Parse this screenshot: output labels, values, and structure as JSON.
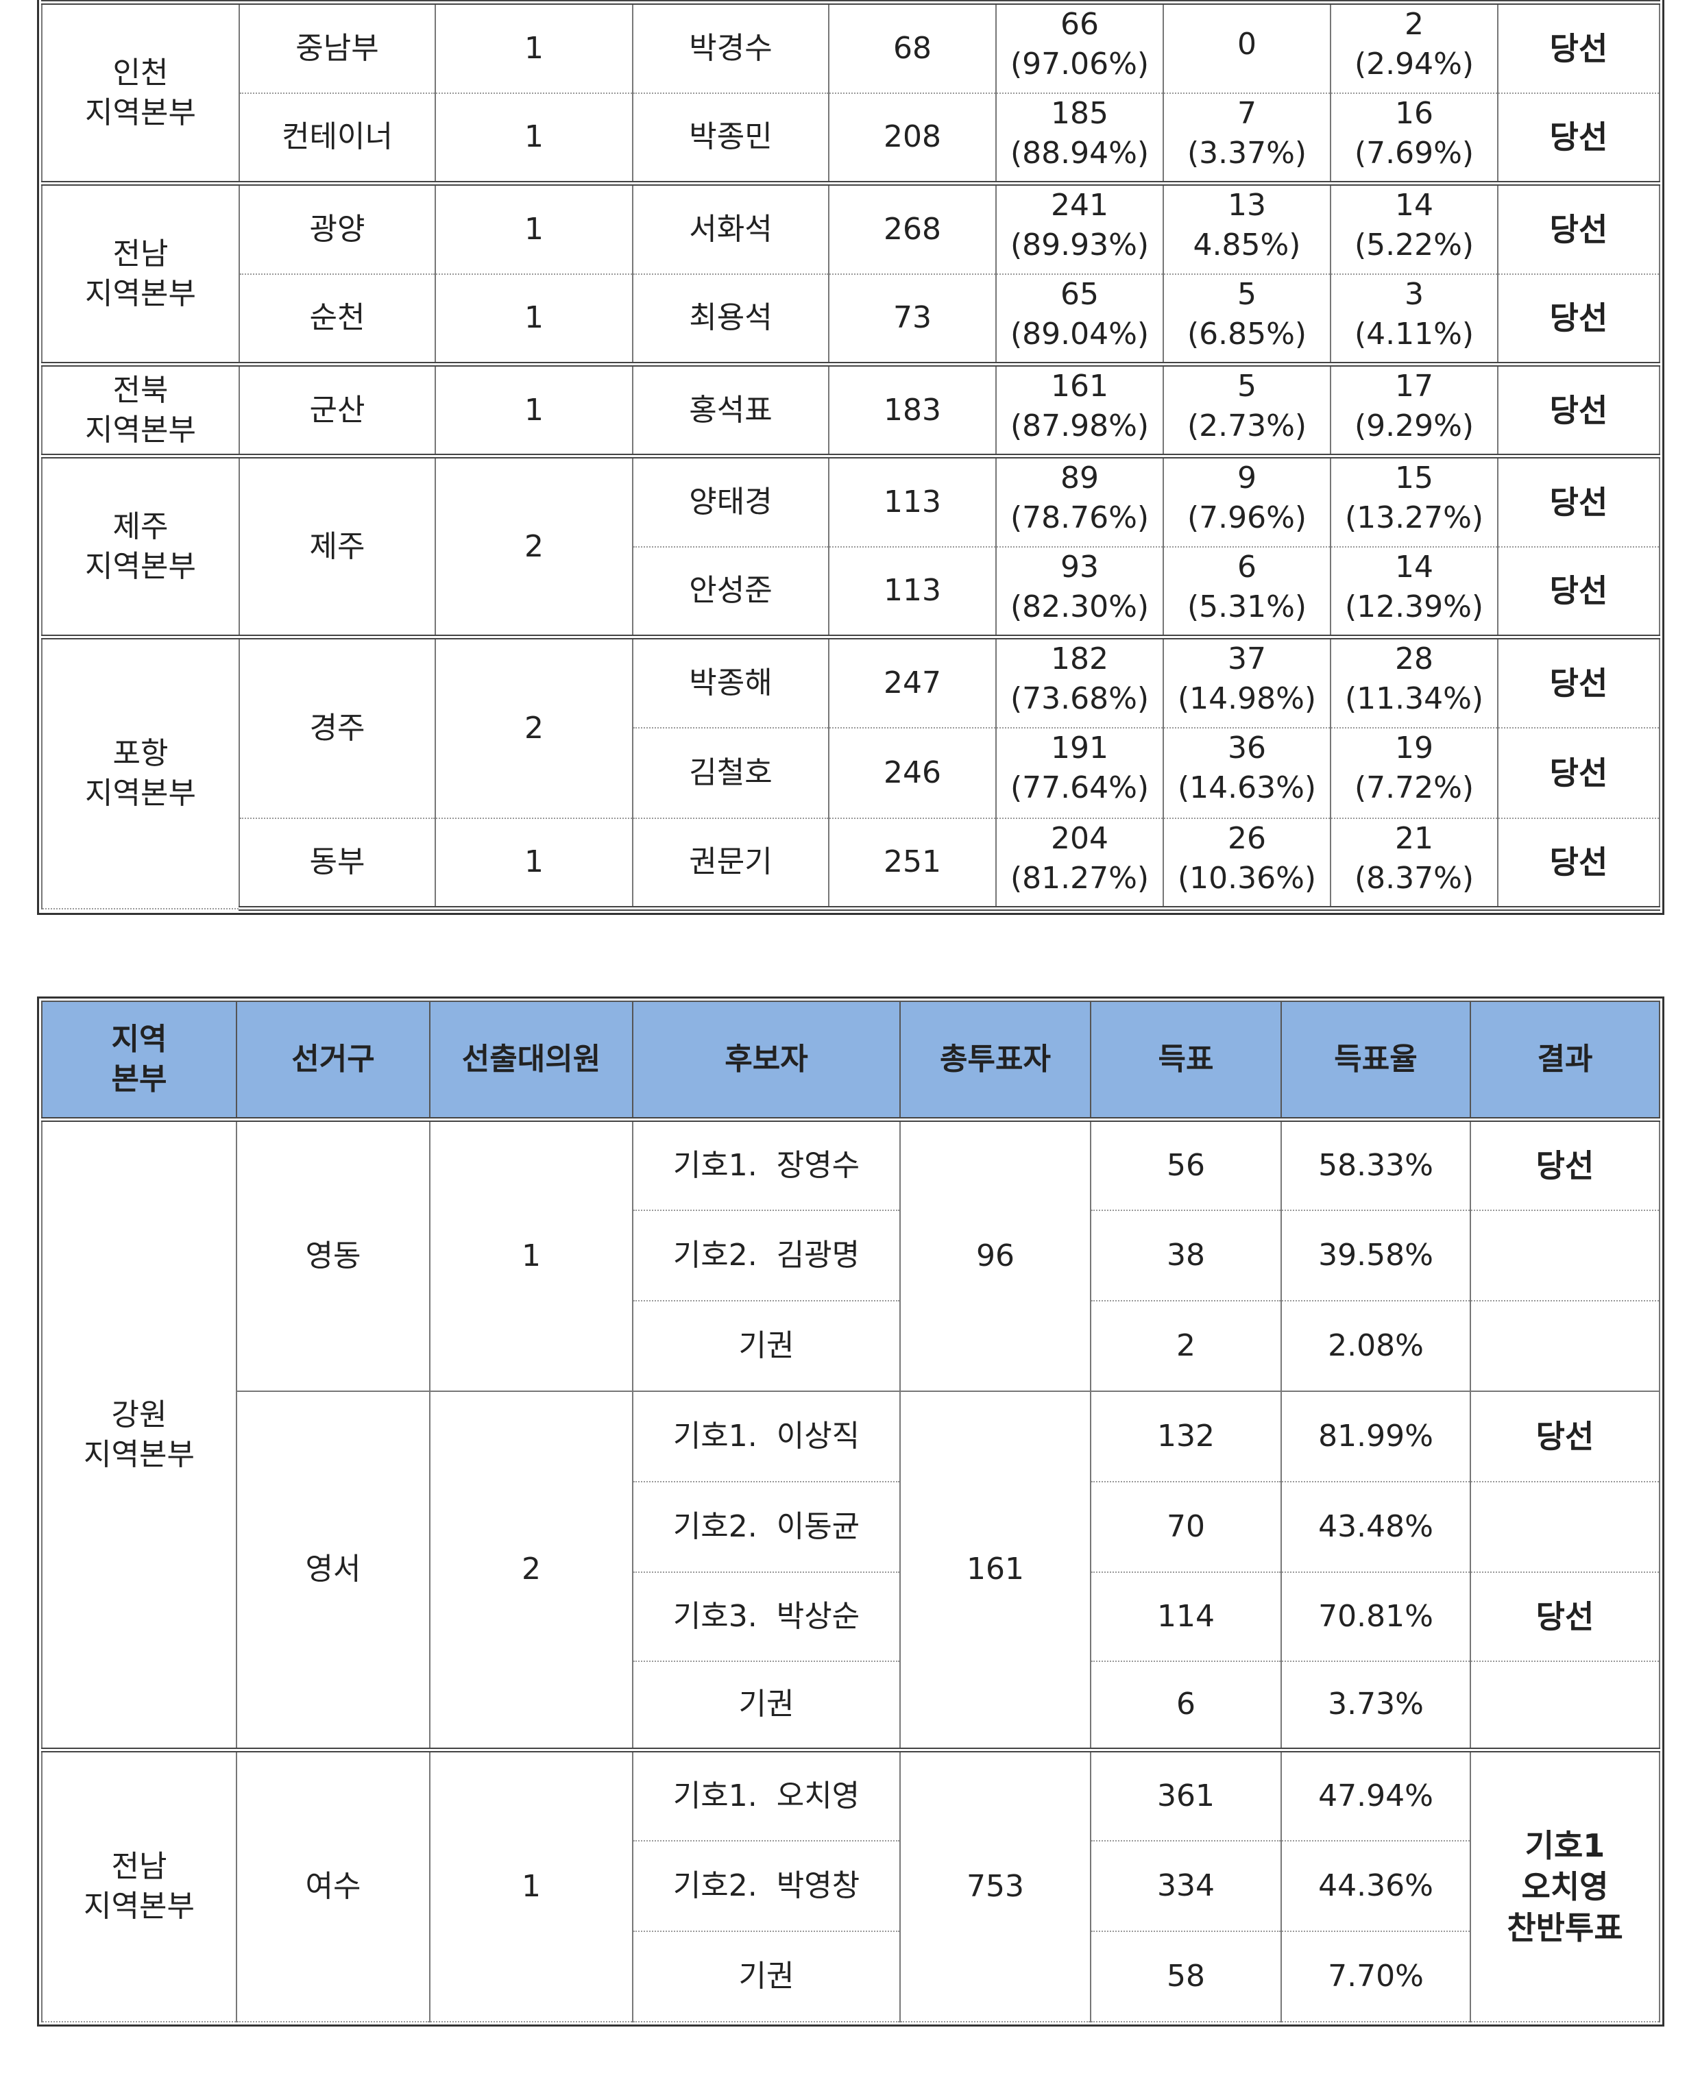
{
  "table1": {
    "rows": [
      {
        "region": "인천\n지역본부",
        "district": "중남부",
        "delegates": "1",
        "candidate": "박경수",
        "total": "68",
        "yes": "66",
        "yes_pct": "(97.06%)",
        "no": "0",
        "no_pct": "",
        "abstain": "2",
        "abstain_pct": "(2.94%)",
        "result": "당선"
      },
      {
        "district": "컨테이너",
        "delegates": "1",
        "candidate": "박종민",
        "total": "208",
        "yes": "185",
        "yes_pct": "(88.94%)",
        "no": "7",
        "no_pct": "(3.37%)",
        "abstain": "16",
        "abstain_pct": "(7.69%)",
        "result": "당선"
      },
      {
        "region": "전남\n지역본부",
        "district": "광양",
        "delegates": "1",
        "candidate": "서화석",
        "total": "268",
        "yes": "241",
        "yes_pct": "(89.93%)",
        "no": "13",
        "no_pct": "4.85%)",
        "abstain": "14",
        "abstain_pct": "(5.22%)",
        "result": "당선"
      },
      {
        "district": "순천",
        "delegates": "1",
        "candidate": "최용석",
        "total": "73",
        "yes": "65",
        "yes_pct": "(89.04%)",
        "no": "5",
        "no_pct": "(6.85%)",
        "abstain": "3",
        "abstain_pct": "(4.11%)",
        "result": "당선"
      },
      {
        "region": "전북\n지역본부",
        "district": "군산",
        "delegates": "1",
        "candidate": "홍석표",
        "total": "183",
        "yes": "161",
        "yes_pct": "(87.98%)",
        "no": "5",
        "no_pct": "(2.73%)",
        "abstain": "17",
        "abstain_pct": "(9.29%)",
        "result": "당선"
      },
      {
        "region": "제주\n지역본부",
        "district": "제주",
        "delegates": "2",
        "candidate": "양태경",
        "total": "113",
        "yes": "89",
        "yes_pct": "(78.76%)",
        "no": "9",
        "no_pct": "(7.96%)",
        "abstain": "15",
        "abstain_pct": "(13.27%)",
        "result": "당선"
      },
      {
        "candidate": "안성준",
        "total": "113",
        "yes": "93",
        "yes_pct": "(82.30%)",
        "no": "6",
        "no_pct": "(5.31%)",
        "abstain": "14",
        "abstain_pct": "(12.39%)",
        "result": "당선"
      },
      {
        "region": "포항\n지역본부",
        "district": "경주",
        "delegates": "2",
        "candidate": "박종해",
        "total": "247",
        "yes": "182",
        "yes_pct": "(73.68%)",
        "no": "37",
        "no_pct": "(14.98%)",
        "abstain": "28",
        "abstain_pct": "(11.34%)",
        "result": "당선"
      },
      {
        "candidate": "김철호",
        "total": "246",
        "yes": "191",
        "yes_pct": "(77.64%)",
        "no": "36",
        "no_pct": "(14.63%)",
        "abstain": "19",
        "abstain_pct": "(7.72%)",
        "result": "당선"
      },
      {
        "district": "동부",
        "delegates": "1",
        "candidate": "권문기",
        "total": "251",
        "yes": "204",
        "yes_pct": "(81.27%)",
        "no": "26",
        "no_pct": "(10.36%)",
        "abstain": "21",
        "abstain_pct": "(8.37%)",
        "result": "당선"
      }
    ]
  },
  "table2": {
    "headers": [
      "지역\n본부",
      "선거구",
      "선출대의원",
      "후보자",
      "총투표자",
      "득표",
      "득표율",
      "결과"
    ],
    "groups": [
      {
        "region": "강원\n지역본부",
        "districts": [
          {
            "name": "영동",
            "delegates": "1",
            "total": "96",
            "rows": [
              {
                "candidate": "기호1.  장영수",
                "votes": "56",
                "rate": "58.33%",
                "result": "당선"
              },
              {
                "candidate": "기호2.  김광명",
                "votes": "38",
                "rate": "39.58%",
                "result": ""
              },
              {
                "candidate": "기권",
                "votes": "2",
                "rate": "2.08%",
                "result": ""
              }
            ]
          },
          {
            "name": "영서",
            "delegates": "2",
            "total": "161",
            "rows": [
              {
                "candidate": "기호1.  이상직",
                "votes": "132",
                "rate": "81.99%",
                "result": "당선"
              },
              {
                "candidate": "기호2.  이동균",
                "votes": "70",
                "rate": "43.48%",
                "result": ""
              },
              {
                "candidate": "기호3.  박상순",
                "votes": "114",
                "rate": "70.81%",
                "result": "당선"
              },
              {
                "candidate": "기권",
                "votes": "6",
                "rate": "3.73%",
                "result": ""
              }
            ]
          }
        ]
      },
      {
        "region": "전남\n지역본부",
        "districts": [
          {
            "name": "여수",
            "delegates": "1",
            "total": "753",
            "result": "기호1\n오치영\n찬반투표",
            "rows": [
              {
                "candidate": "기호1.  오치영",
                "votes": "361",
                "rate": "47.94%"
              },
              {
                "candidate": "기호2.  박영창",
                "votes": "334",
                "rate": "44.36%"
              },
              {
                "candidate": "기권",
                "votes": "58",
                "rate": "7.70%"
              }
            ]
          }
        ]
      }
    ]
  }
}
